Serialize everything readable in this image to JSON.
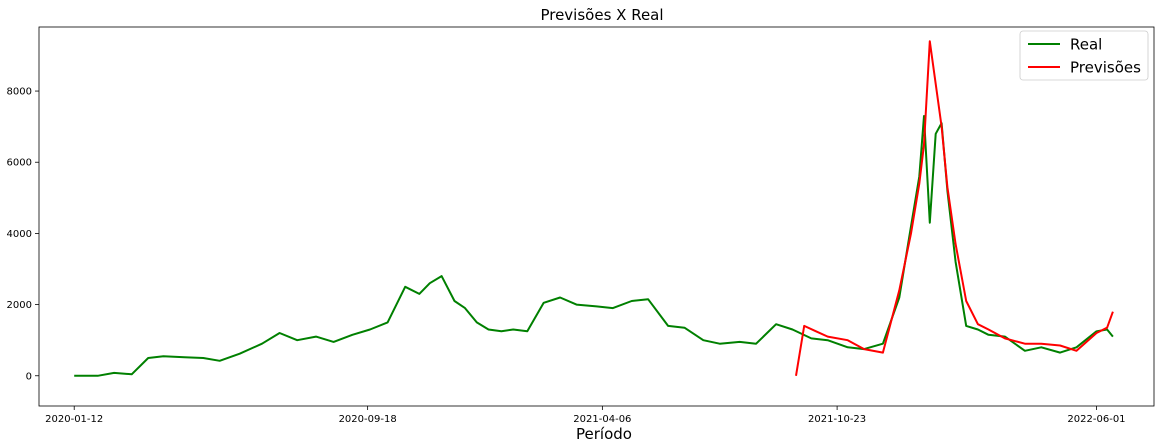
{
  "chart_data": {
    "type": "line",
    "title": "Previsões X Real",
    "xlabel": "Período",
    "ylabel": "",
    "x_ticks": [
      "2020-01-12",
      "2020-09-18",
      "2021-04-06",
      "2021-10-23",
      "2022-06-01"
    ],
    "x_tick_dates": [
      "2020-01-12",
      "2020-09-18",
      "2021-04-06",
      "2021-10-23",
      "2022-06-01"
    ],
    "xlim": [
      "2019-12-13",
      "2022-07-20"
    ],
    "y_ticks": [
      0,
      2000,
      4000,
      6000,
      8000
    ],
    "ylim": [
      -850,
      9800
    ],
    "grid": false,
    "legend_position": "top-right",
    "series": [
      {
        "name": "Real",
        "color": "#008000",
        "dates": [
          "2020-01-12",
          "2020-02-01",
          "2020-02-15",
          "2020-03-01",
          "2020-03-15",
          "2020-03-28",
          "2020-04-15",
          "2020-05-01",
          "2020-05-15",
          "2020-06-01",
          "2020-06-20",
          "2020-07-05",
          "2020-07-20",
          "2020-08-05",
          "2020-08-20",
          "2020-09-05",
          "2020-09-20",
          "2020-10-05",
          "2020-10-20",
          "2020-11-01",
          "2020-11-10",
          "2020-11-20",
          "2020-12-01",
          "2020-12-10",
          "2020-12-20",
          "2020-12-30",
          "2021-01-10",
          "2021-01-20",
          "2021-02-01",
          "2021-02-15",
          "2021-03-01",
          "2021-03-15",
          "2021-04-01",
          "2021-04-15",
          "2021-05-01",
          "2021-05-15",
          "2021-06-01",
          "2021-06-15",
          "2021-07-01",
          "2021-07-15",
          "2021-08-01",
          "2021-08-15",
          "2021-09-01",
          "2021-09-15",
          "2021-10-01",
          "2021-10-15",
          "2021-11-01",
          "2021-11-15",
          "2021-12-01",
          "2021-12-15",
          "2021-12-25",
          "2022-01-01",
          "2022-01-05",
          "2022-01-10",
          "2022-01-15",
          "2022-01-20",
          "2022-01-25",
          "2022-02-01",
          "2022-02-10",
          "2022-02-20",
          "2022-03-01",
          "2022-03-15",
          "2022-04-01",
          "2022-04-15",
          "2022-05-01",
          "2022-05-15",
          "2022-06-01",
          "2022-06-10",
          "2022-06-15"
        ],
        "values": [
          0,
          0,
          80,
          40,
          500,
          550,
          520,
          500,
          420,
          620,
          900,
          1200,
          1000,
          1100,
          950,
          1150,
          1300,
          1500,
          2500,
          2300,
          2600,
          2800,
          2100,
          1900,
          1500,
          1300,
          1250,
          1300,
          1250,
          2050,
          2200,
          2000,
          1950,
          1900,
          2100,
          2150,
          1400,
          1350,
          1000,
          900,
          950,
          900,
          1450,
          1300,
          1050,
          1000,
          800,
          750,
          900,
          2200,
          4200,
          5600,
          7300,
          4300,
          6800,
          7100,
          5200,
          3200,
          1400,
          1300,
          1150,
          1100,
          700,
          800,
          650,
          800,
          1250,
          1300,
          1100
        ]
      },
      {
        "name": "Previsões",
        "color": "#ff0000",
        "dates": [
          "2021-09-18",
          "2021-09-25",
          "2021-10-05",
          "2021-10-15",
          "2021-11-01",
          "2021-11-15",
          "2021-12-01",
          "2021-12-15",
          "2021-12-25",
          "2022-01-01",
          "2022-01-05",
          "2022-01-10",
          "2022-01-15",
          "2022-01-20",
          "2022-01-25",
          "2022-02-01",
          "2022-02-10",
          "2022-02-20",
          "2022-03-01",
          "2022-03-15",
          "2022-04-01",
          "2022-04-15",
          "2022-05-01",
          "2022-05-15",
          "2022-06-01",
          "2022-06-10",
          "2022-06-15"
        ],
        "values": [
          0,
          1400,
          1250,
          1100,
          1000,
          750,
          650,
          2400,
          4000,
          5400,
          6500,
          9400,
          8200,
          7000,
          5300,
          3700,
          2100,
          1450,
          1300,
          1050,
          900,
          900,
          850,
          700,
          1200,
          1350,
          1800
        ]
      }
    ]
  }
}
